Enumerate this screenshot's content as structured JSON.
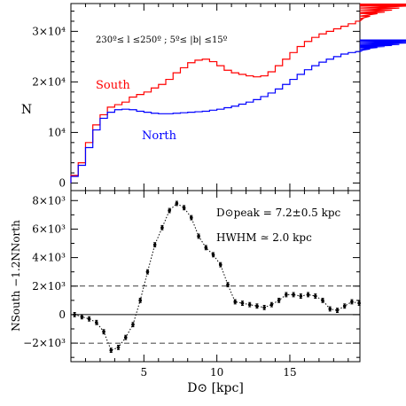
{
  "chart_data": [
    {
      "type": "line",
      "step": true,
      "annotation_range": "230º≤ l ≤250º ; 5º≤ |b| ≤15º",
      "ylabel": "N",
      "xlim": [
        0,
        19.8
      ],
      "ylim": [
        -1500,
        35500
      ],
      "yticks": [
        {
          "v": 0,
          "t": "0"
        },
        {
          "v": 10000,
          "t": "10⁴"
        },
        {
          "v": 20000,
          "t": "2×10⁴"
        },
        {
          "v": 30000,
          "t": "3×10⁴"
        }
      ],
      "bin_width": 0.5,
      "bin_start": 0,
      "series": [
        {
          "name": "South",
          "color": "#ff0000",
          "values": [
            1500,
            4000,
            8000,
            11500,
            13500,
            15000,
            15500,
            16000,
            17000,
            17500,
            18000,
            18800,
            19500,
            20500,
            21800,
            22800,
            23800,
            24300,
            24500,
            24000,
            23200,
            22300,
            21800,
            21500,
            21200,
            21000,
            21200,
            22000,
            23200,
            24500,
            25800,
            27000,
            28000,
            28800,
            29500,
            30000,
            30500,
            31000,
            31500,
            32000,
            32500,
            33000,
            33500,
            33800,
            34200,
            34600,
            35000,
            35200,
            35300,
            35400
          ]
        },
        {
          "name": "North",
          "color": "#0000ff",
          "values": [
            1300,
            3500,
            7000,
            10500,
            12800,
            14000,
            14500,
            14600,
            14500,
            14200,
            14000,
            13800,
            13700,
            13700,
            13800,
            13900,
            14000,
            14100,
            14200,
            14400,
            14600,
            14900,
            15200,
            15600,
            16000,
            16500,
            17100,
            17800,
            18600,
            19500,
            20500,
            21500,
            22400,
            23200,
            23900,
            24500,
            25000,
            25500,
            25800,
            26000,
            26200,
            26500,
            26800,
            27000,
            27200,
            27400,
            27700,
            28000,
            28200,
            28300
          ]
        }
      ]
    },
    {
      "type": "scatter",
      "xlabel": "D⊙ [kpc]",
      "ylabel": "NSouth −1.2NNorth",
      "xlim": [
        0,
        19.8
      ],
      "ylim": [
        -3300,
        8700
      ],
      "xticks": [
        5,
        10,
        15
      ],
      "yticks": [
        {
          "v": -2000,
          "t": "−2×10³"
        },
        {
          "v": 0,
          "t": "0"
        },
        {
          "v": 2000,
          "t": "2×10³"
        },
        {
          "v": 4000,
          "t": "4×10³"
        },
        {
          "v": 6000,
          "t": "6×10³"
        },
        {
          "v": 8000,
          "t": "8×10³"
        }
      ],
      "hlines_dashed": [
        2000,
        -2000
      ],
      "hline_solid": 0,
      "annotation_peak": "D⊙peak = 7.2±0.5 kpc",
      "annotation_hwhm": "HWHM ≃ 2.0 kpc",
      "error": 150,
      "points": [
        {
          "x": 0.25,
          "y": 0
        },
        {
          "x": 0.75,
          "y": -150
        },
        {
          "x": 1.25,
          "y": -300
        },
        {
          "x": 1.75,
          "y": -550
        },
        {
          "x": 2.25,
          "y": -1200
        },
        {
          "x": 2.75,
          "y": -2500
        },
        {
          "x": 3.25,
          "y": -2300
        },
        {
          "x": 3.75,
          "y": -1600
        },
        {
          "x": 4.25,
          "y": -700
        },
        {
          "x": 4.75,
          "y": 1000
        },
        {
          "x": 5.25,
          "y": 3000
        },
        {
          "x": 5.75,
          "y": 4900
        },
        {
          "x": 6.25,
          "y": 6100
        },
        {
          "x": 6.75,
          "y": 7300
        },
        {
          "x": 7.25,
          "y": 7800
        },
        {
          "x": 7.75,
          "y": 7500
        },
        {
          "x": 8.25,
          "y": 6800
        },
        {
          "x": 8.75,
          "y": 5500
        },
        {
          "x": 9.25,
          "y": 4700
        },
        {
          "x": 9.75,
          "y": 4200
        },
        {
          "x": 10.25,
          "y": 3500
        },
        {
          "x": 10.75,
          "y": 2100
        },
        {
          "x": 11.25,
          "y": 900
        },
        {
          "x": 11.75,
          "y": 800
        },
        {
          "x": 12.25,
          "y": 700
        },
        {
          "x": 12.75,
          "y": 600
        },
        {
          "x": 13.25,
          "y": 500
        },
        {
          "x": 13.75,
          "y": 700
        },
        {
          "x": 14.25,
          "y": 1000
        },
        {
          "x": 14.75,
          "y": 1400
        },
        {
          "x": 15.25,
          "y": 1400
        },
        {
          "x": 15.75,
          "y": 1300
        },
        {
          "x": 16.25,
          "y": 1400
        },
        {
          "x": 16.75,
          "y": 1300
        },
        {
          "x": 17.25,
          "y": 1000
        },
        {
          "x": 17.75,
          "y": 400
        },
        {
          "x": 18.25,
          "y": 300
        },
        {
          "x": 18.75,
          "y": 600
        },
        {
          "x": 19.25,
          "y": 900
        },
        {
          "x": 19.75,
          "y": 800
        }
      ]
    }
  ]
}
